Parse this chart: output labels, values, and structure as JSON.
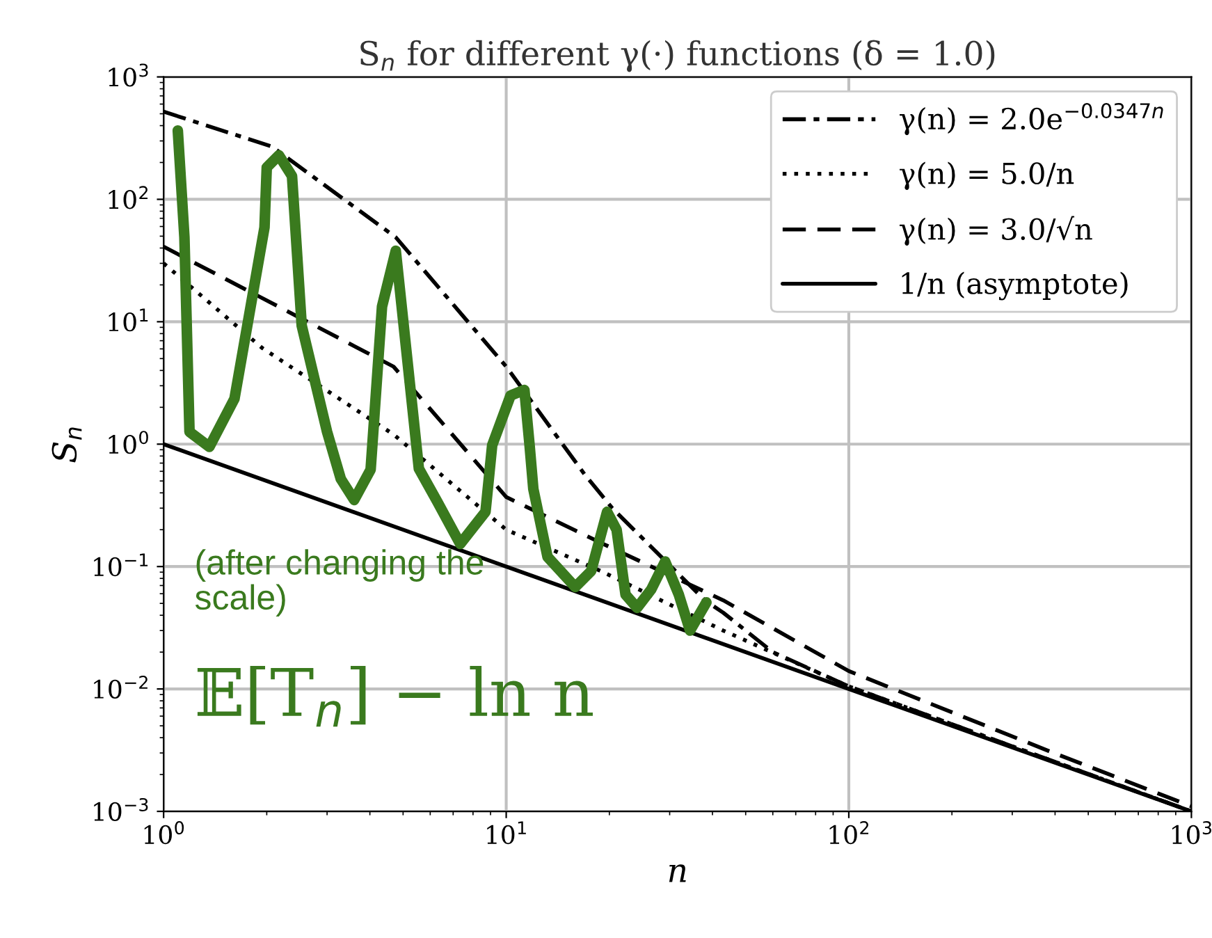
{
  "chart_data": {
    "type": "line",
    "title": "S$_{n}$ for different γ(·) functions (δ = 1.0)",
    "xlabel": "n",
    "ylabel": "S$_{n}$",
    "log": "xy",
    "grid": true,
    "legend": "top right",
    "xlim": [
      1,
      1000
    ],
    "ylim": [
      0.001,
      1000
    ],
    "xticks": [
      {
        "value": 1,
        "label": "10$^{0}$"
      },
      {
        "value": 10,
        "label": "10$^{1}$"
      },
      {
        "value": 100,
        "label": "10$^{2}$"
      },
      {
        "value": 1000,
        "label": "10$^{3}$"
      }
    ],
    "yticks": [
      {
        "value": 0.001,
        "label": "10$^{−3}$"
      },
      {
        "value": 0.01,
        "label": "10$^{−2}$"
      },
      {
        "value": 0.1,
        "label": "10$^{−1}$"
      },
      {
        "value": 1,
        "label": "10$^{0}$"
      },
      {
        "value": 10,
        "label": "10$^{1}$"
      },
      {
        "value": 100,
        "label": "10$^{2}$"
      },
      {
        "value": 1000,
        "label": "10$^{3}$"
      }
    ],
    "series": [
      {
        "name": "γ(n) = 2.0e$^{−0.0347n}$",
        "color": "#000000",
        "line_style": "dashdot",
        "x": [
          1,
          2.07,
          4.76,
          10,
          16.9,
          20.4,
          38,
          43,
          60,
          100,
          300,
          1000
        ],
        "values": [
          520,
          270,
          49,
          4.3,
          0.57,
          0.3,
          0.053,
          0.042,
          0.02,
          0.0105,
          0.0034,
          0.001
        ]
      },
      {
        "name": "γ(n) = 5.0/n",
        "color": "#000000",
        "line_style": "dotted",
        "x": [
          1,
          1.94,
          4.69,
          10,
          19.2,
          43,
          100,
          300,
          1000
        ],
        "values": [
          30,
          6.1,
          1.2,
          0.2,
          0.09,
          0.03,
          0.0105,
          0.0034,
          0.001
        ]
      },
      {
        "name": "γ(n) = 3.0/√n",
        "color": "#000000",
        "line_style": "dashed",
        "x": [
          1,
          4.69,
          10,
          19.2,
          43,
          100,
          385,
          1000
        ],
        "values": [
          41,
          4.3,
          0.37,
          0.153,
          0.053,
          0.014,
          0.0031,
          0.0011
        ]
      },
      {
        "name": "1/n (asymptote)",
        "color": "#000000",
        "line_style": "solid",
        "x": [
          1,
          1000
        ],
        "values": [
          1,
          0.001
        ]
      },
      {
        "color": "#3a7a1e",
        "line_style": "solid",
        "x": [
          1.1,
          1.15,
          1.19,
          1.36,
          1.61,
          1.97,
          2.0,
          2.17,
          2.37,
          2.53,
          3.0,
          3.29,
          3.6,
          4.02,
          4.34,
          4.76,
          5.56,
          6.29,
          7.34,
          8.7,
          9.1,
          10.3,
          11.3,
          11.7,
          12.0,
          13.2,
          15.9,
          17.7,
          19.7,
          21,
          22.3,
          24.1,
          26.5,
          29.1,
          31.9,
          34.4,
          38.4
        ],
        "values": [
          365,
          49,
          1.26,
          0.95,
          2.35,
          59,
          182,
          229,
          155,
          9.3,
          1.26,
          0.52,
          0.35,
          0.62,
          13.3,
          38,
          0.63,
          0.34,
          0.153,
          0.28,
          0.98,
          2.5,
          2.77,
          0.98,
          0.43,
          0.12,
          0.068,
          0.092,
          0.28,
          0.2,
          0.059,
          0.046,
          0.065,
          0.11,
          0.059,
          0.03,
          0.051
        ]
      }
    ],
    "annotations": [
      "(after changing the scale)",
      "𝔼[T$_{n}$] − ln n"
    ]
  }
}
